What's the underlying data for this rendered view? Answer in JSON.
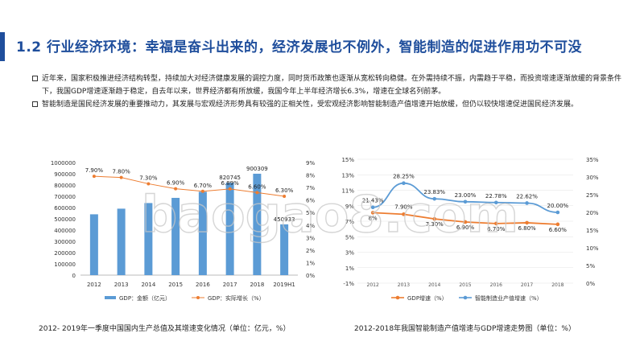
{
  "title": "1.2  行业经济环境：幸福是奋斗出来的，经济发展也不例外，智能制造的促进作用功不可没",
  "paragraphs": [
    "近年来，国家积极推进经济结构转型，持续加大对经济健康发展的调控力度，同时货币政策也逐渐从宽松转向稳健。在外需持续不振，内需趋于平稳，而投资增速逐渐放缓的背景条件下，我国GDP增速逐渐趋于稳定，自去年以来，世界经济都有所放缓，我国今年上半年经济增长6.3%，增速在全球名列前茅。",
    "智能制造是国民经济发展的重要推动力，其发展与宏观经济形势具有较强的正相关性，受宏观经济影响智能制造产值增速开始放缓，但仍以较快增速促进国民经济发展。"
  ],
  "watermark": "baogao8.com",
  "chart_data": [
    {
      "type": "bar",
      "caption": "2012- 2019年一季度中国国内生产总值及其增速变化情况（单位：亿元，%）",
      "categories": [
        "2012",
        "2013",
        "2014",
        "2015",
        "2016",
        "2017",
        "2018",
        "2019H1"
      ],
      "series": [
        {
          "name": "GDP：金额（亿元）",
          "axis": "left",
          "kind": "bar",
          "color": "#5b9bd5",
          "values": [
            540000,
            590000,
            640000,
            686000,
            740000,
            820745,
            900309,
            450933
          ]
        },
        {
          "name": "GDP：实际增长（%）",
          "axis": "right",
          "kind": "line",
          "color": "#ed7d31",
          "values": [
            7.9,
            7.8,
            7.3,
            6.9,
            6.7,
            6.89,
            6.6,
            6.3
          ]
        }
      ],
      "bar_labels": [
        {
          "index": 5,
          "text": "820745"
        },
        {
          "index": 6,
          "text": "900309"
        },
        {
          "index": 7,
          "text": "450933"
        }
      ],
      "line_labels": [
        "7.90%",
        "7.80%",
        "7.30%",
        "6.90%",
        "6.70%",
        "6.89%",
        "6.60%",
        "6.30%"
      ],
      "ylim_left": [
        0,
        1000000
      ],
      "yticks_left": [
        "0",
        "100000",
        "200000",
        "300000",
        "400000",
        "500000",
        "600000",
        "700000",
        "800000",
        "900000",
        "1000000"
      ],
      "ylim_right": [
        0,
        9
      ],
      "yticks_right": [
        "0%",
        "1%",
        "2%",
        "3%",
        "4%",
        "5%",
        "6%",
        "7%",
        "8%",
        "9%"
      ],
      "legend": [
        "GDP：金额（亿元）",
        "GDP：实际增长（%）"
      ]
    },
    {
      "type": "line",
      "caption": "2012-2018年我国智能制造产值增速与GDP增速走势图（单位：%）",
      "categories": [
        "2012",
        "2013",
        "2014",
        "2015",
        "2016",
        "2017",
        "2018"
      ],
      "series": [
        {
          "name": "GDP增速（%）",
          "axis": "left",
          "color": "#ed7d31",
          "values": [
            8.1,
            7.9,
            7.3,
            6.9,
            6.7,
            6.8,
            6.6
          ]
        },
        {
          "name": "智能制造业产值增速（%）",
          "axis": "right",
          "color": "#5b9bd5",
          "values": [
            21.43,
            28.25,
            23.83,
            23.0,
            22.78,
            22.62,
            20.0
          ]
        }
      ],
      "labels_gdp": [
        "8%",
        "7.90%",
        "7.30%",
        "6.90%",
        "6.70%",
        "6.80%",
        "6.60%"
      ],
      "labels_smart": [
        "21.43%",
        "28.25%",
        "23.83%",
        "23.00%",
        "22.78%",
        "22.62%",
        "20.00%"
      ],
      "ylim_left": [
        -1,
        15
      ],
      "yticks_left": [
        "-1%",
        "1%",
        "3%",
        "5%",
        "7%",
        "9%",
        "11%",
        "13%",
        "15%"
      ],
      "ylim_right": [
        0,
        35
      ],
      "yticks_right": [
        "0%",
        "5%",
        "10%",
        "15%",
        "20%",
        "25%",
        "30%",
        "35%"
      ],
      "legend": [
        "GDP增速（%）",
        "智能制造业产值增速（%）"
      ]
    }
  ]
}
